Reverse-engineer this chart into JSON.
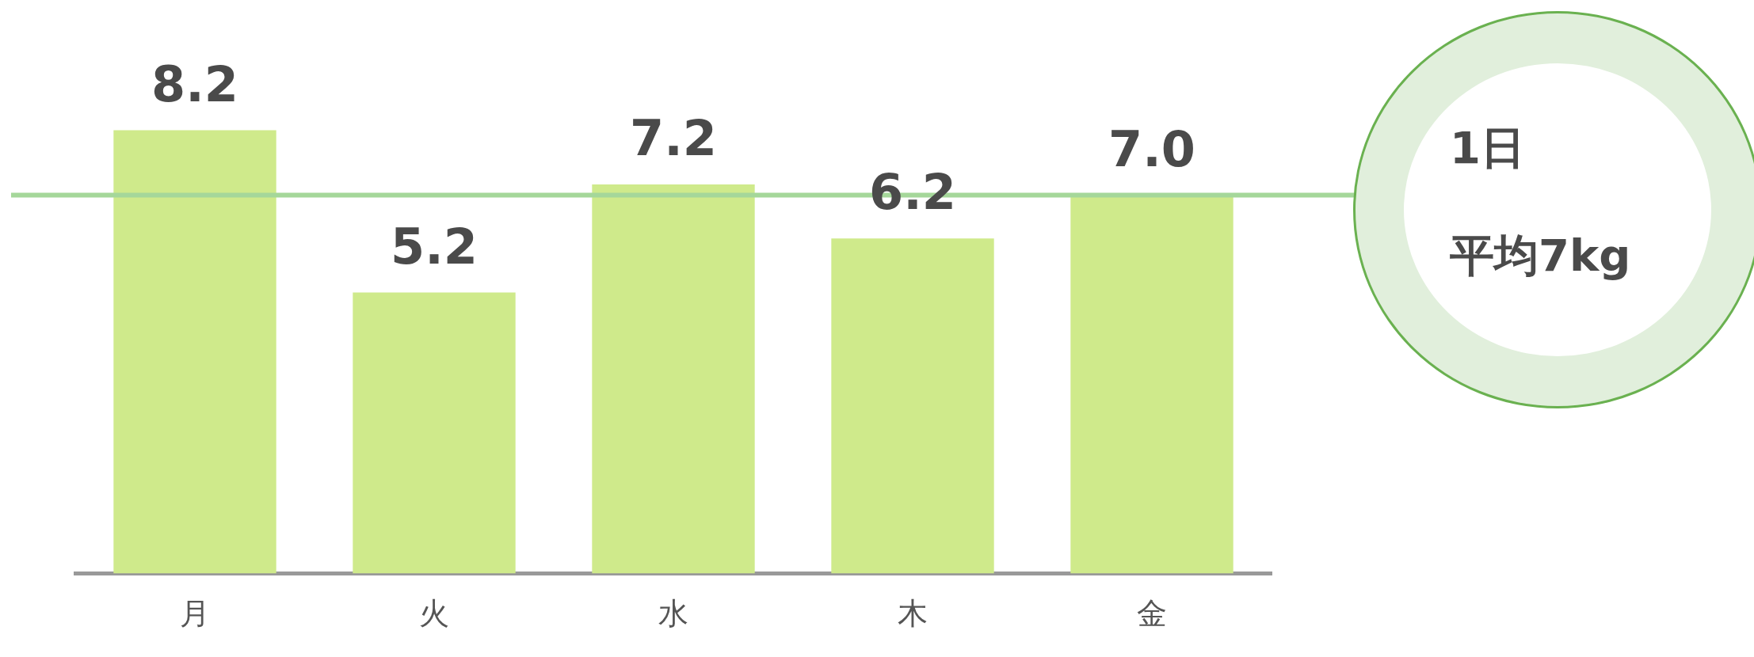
{
  "chart_data": {
    "type": "bar",
    "categories": [
      "月",
      "火",
      "水",
      "木",
      "金"
    ],
    "values": [
      8.2,
      5.2,
      7.2,
      6.2,
      7.0
    ],
    "color": "#cfea8b",
    "value_labels": [
      "8.2",
      "5.2",
      "7.2",
      "6.2",
      "7.0"
    ],
    "grid": false,
    "legend": false,
    "tick_labels": "x",
    "ref_lines": [
      {
        "axis": "y",
        "value": 7,
        "color": "#a5d79a"
      }
    ],
    "annotations": [
      "1日",
      "平均7kg"
    ]
  }
}
